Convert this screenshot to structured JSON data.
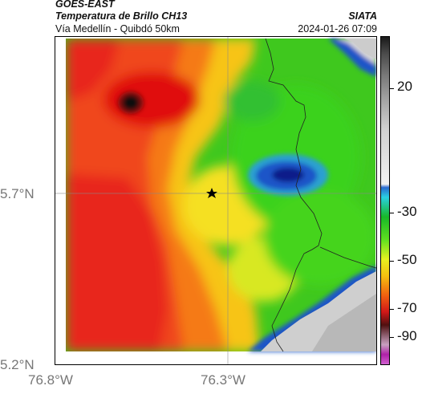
{
  "header": {
    "satellite": "GOES-EAST",
    "product": "Temperatura de Brillo CH13",
    "route": "Vía Medellín - Quibdó 50km",
    "agency": "SIATA",
    "datetime": "2024-01-26 07:09"
  },
  "axes": {
    "lat_labels": [
      "5.7°N",
      "5.2°N"
    ],
    "lon_labels": [
      "76.8°W",
      "76.3°W"
    ]
  },
  "colorbar": {
    "ticks": [
      "20",
      "-30",
      "-50",
      "-70",
      "-90"
    ]
  },
  "map": {
    "marker": "star",
    "gridlines": true
  },
  "colors": {
    "warm": "#e81f10",
    "cold": "#1133aa",
    "ground": "#d8d8d8"
  }
}
